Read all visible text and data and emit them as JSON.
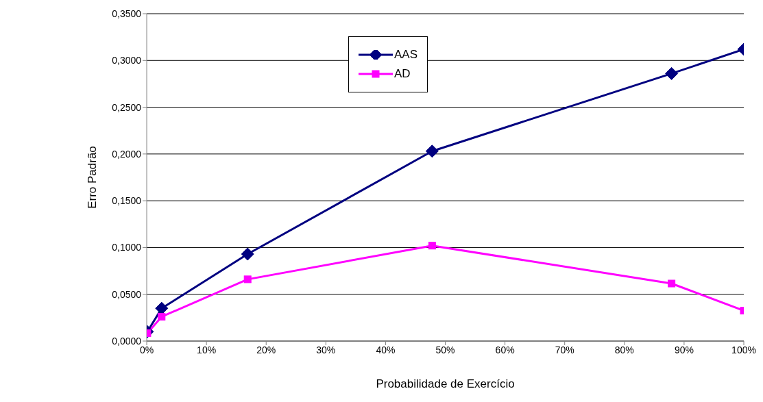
{
  "chart_data": {
    "type": "line",
    "xlabel": "Probabilidade de Exercício",
    "ylabel": "Erro Padrão",
    "xlim": [
      0,
      100
    ],
    "xticks": [
      {
        "value": 0,
        "label": "0%"
      },
      {
        "value": 10,
        "label": "10%"
      },
      {
        "value": 20,
        "label": "20%"
      },
      {
        "value": 30,
        "label": "30%"
      },
      {
        "value": 40,
        "label": "40%"
      },
      {
        "value": 50,
        "label": "50%"
      },
      {
        "value": 60,
        "label": "60%"
      },
      {
        "value": 70,
        "label": "70%"
      },
      {
        "value": 80,
        "label": "80%"
      },
      {
        "value": 90,
        "label": "90%"
      },
      {
        "value": 100,
        "label": "100%"
      }
    ],
    "ylim": [
      0,
      0.35
    ],
    "yticks": [
      {
        "value": 0,
        "label": "0,0000"
      },
      {
        "value": 0.05,
        "label": "0,0500"
      },
      {
        "value": 0.1,
        "label": "0,1000"
      },
      {
        "value": 0.15,
        "label": "0,1500"
      },
      {
        "value": 0.2,
        "label": "0,2000"
      },
      {
        "value": 0.25,
        "label": "0,2500"
      },
      {
        "value": 0.3,
        "label": "0,3000"
      },
      {
        "value": 0.35,
        "label": "0,3500"
      }
    ],
    "grid": "y",
    "legend": "top",
    "series": [
      {
        "name": "AAS",
        "color": "#000080",
        "marker": "diamond",
        "x": [
          0.1,
          2.5,
          16.9,
          47.8,
          87.9,
          100
        ],
        "values": [
          0.01,
          0.035,
          0.093,
          0.203,
          0.286,
          0.312
        ]
      },
      {
        "name": "AD",
        "color": "#ff00ff",
        "marker": "square",
        "x": [
          0.1,
          2.5,
          16.9,
          47.8,
          87.9,
          100
        ],
        "values": [
          0.0085,
          0.026,
          0.066,
          0.102,
          0.0615,
          0.0325
        ]
      }
    ]
  }
}
